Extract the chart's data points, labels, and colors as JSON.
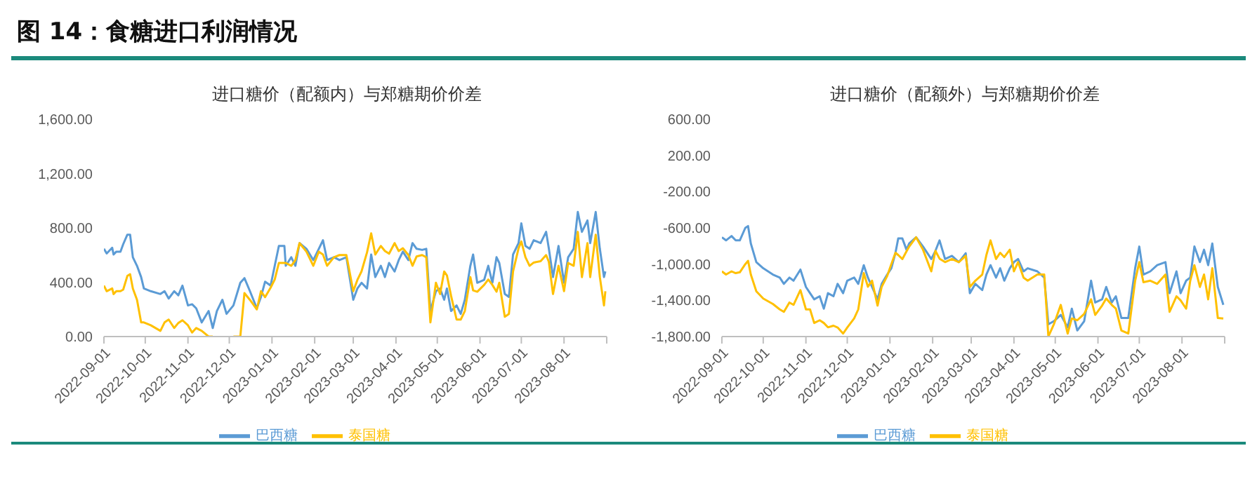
{
  "chart_data": [
    {
      "type": "line",
      "title": "图 14：食糖进口利润情况",
      "subtitle": "进口糖价（配额内）与郑糖期价价差",
      "legend": "bottom",
      "grid": false,
      "marker": "none",
      "line_style": "solid",
      "x": [
        "2022-09-01",
        "2022-09-03",
        "2022-09-07",
        "2022-09-08",
        "2022-09-10",
        "2022-09-13",
        "2022-09-15",
        "2022-09-18",
        "2022-09-20",
        "2022-09-22",
        "2022-09-25",
        "2022-09-28",
        "2022-09-30",
        "2022-10-05",
        "2022-10-12",
        "2022-10-15",
        "2022-10-18",
        "2022-10-22",
        "2022-10-25",
        "2022-10-28",
        "2022-11-01",
        "2022-11-04",
        "2022-11-07",
        "2022-11-11",
        "2022-11-16",
        "2022-11-19",
        "2022-11-22",
        "2022-11-26",
        "2022-11-29",
        "2022-12-04",
        "2022-12-09",
        "2022-12-12",
        "2022-12-16",
        "2022-12-21",
        "2022-12-24",
        "2022-12-27",
        "2022-12-31",
        "2023-01-03",
        "2023-01-06",
        "2023-01-10",
        "2023-01-11",
        "2023-01-15",
        "2023-01-18",
        "2023-01-21",
        "2023-01-26",
        "2023-01-31",
        "2023-02-04",
        "2023-02-07",
        "2023-02-10",
        "2023-02-15",
        "2023-02-19",
        "2023-02-24",
        "2023-03-01",
        "2023-03-04",
        "2023-03-07",
        "2023-03-11",
        "2023-03-14",
        "2023-03-17",
        "2023-03-21",
        "2023-03-24",
        "2023-03-27",
        "2023-03-31",
        "2023-04-03",
        "2023-04-06",
        "2023-04-10",
        "2023-04-13",
        "2023-04-16",
        "2023-04-20",
        "2023-04-23",
        "2023-04-26",
        "2023-04-30",
        "2023-05-03",
        "2023-05-06",
        "2023-05-08",
        "2023-05-11",
        "2023-05-15",
        "2023-05-18",
        "2023-05-21",
        "2023-05-25",
        "2023-05-27",
        "2023-05-30",
        "2023-06-04",
        "2023-06-07",
        "2023-06-10",
        "2023-06-13",
        "2023-06-15",
        "2023-06-19",
        "2023-06-22",
        "2023-06-25",
        "2023-06-29",
        "2023-07-01",
        "2023-07-04",
        "2023-07-07",
        "2023-07-10",
        "2023-07-15",
        "2023-07-19",
        "2023-07-21",
        "2023-07-24",
        "2023-07-28",
        "2023-08-01",
        "2023-08-04",
        "2023-08-08",
        "2023-08-11",
        "2023-08-14",
        "2023-08-18",
        "2023-08-20",
        "2023-08-24",
        "2023-08-27",
        "2023-08-30",
        "2023-08-31"
      ],
      "xlim": [
        "2022-09-01",
        "2023-09-01"
      ],
      "xticks": [
        "2022-09-01",
        "2022-10-01",
        "2022-11-01",
        "2022-12-01",
        "2023-01-01",
        "2023-02-01",
        "2023-03-01",
        "2023-04-01",
        "2023-05-01",
        "2023-06-01",
        "2023-07-01",
        "2023-08-01",
        {
          "value": "2023-09-01",
          "label": null
        }
      ],
      "ylim": [
        0,
        1600
      ],
      "yticks": [
        {
          "value": 0,
          "label": "0.00"
        },
        {
          "value": 400,
          "label": "400.00"
        },
        {
          "value": 800,
          "label": "800.00"
        },
        {
          "value": 1200,
          "label": "1,200.00"
        },
        {
          "value": 1600,
          "label": "1,600.00"
        }
      ],
      "series": [
        {
          "name": "巴西糖",
          "color": "#5b9bd5",
          "values": [
            646,
            612,
            654,
            604,
            625,
            625,
            680,
            750,
            750,
            584,
            521,
            438,
            354,
            334,
            313,
            334,
            280,
            334,
            304,
            375,
            229,
            238,
            208,
            104,
            188,
            63,
            188,
            271,
            167,
            229,
            396,
            430,
            334,
            208,
            292,
            404,
            375,
            521,
            667,
            667,
            521,
            584,
            521,
            688,
            646,
            563,
            646,
            709,
            563,
            584,
            563,
            584,
            271,
            354,
            396,
            354,
            604,
            438,
            521,
            438,
            542,
            479,
            563,
            625,
            563,
            688,
            646,
            638,
            646,
            188,
            334,
            354,
            271,
            354,
            188,
            229,
            167,
            271,
            521,
            604,
            396,
            417,
            521,
            396,
            584,
            542,
            313,
            292,
            604,
            688,
            834,
            667,
            646,
            709,
            688,
            771,
            646,
            438,
            667,
            396,
            584,
            646,
            917,
            771,
            855,
            688,
            917,
            646,
            438,
            479
          ]
        },
        {
          "name": "泰国糖",
          "color": "#ffc000",
          "values": [
            375,
            334,
            354,
            313,
            334,
            334,
            346,
            446,
            459,
            354,
            271,
            104,
            104,
            83,
            42,
            104,
            125,
            63,
            100,
            120,
            83,
            30,
            63,
            42,
            0,
            0,
            null,
            null,
            null,
            0,
            0,
            320,
            270,
            200,
            334,
            290,
            360,
            420,
            542,
            542,
            542,
            521,
            563,
            688,
            625,
            521,
            625,
            604,
            521,
            584,
            600,
            600,
            334,
            417,
            480,
            620,
            760,
            604,
            667,
            630,
            610,
            688,
            630,
            650,
            600,
            521,
            590,
            600,
            584,
            104,
            396,
            313,
            479,
            450,
            300,
            125,
            125,
            188,
            438,
            340,
            330,
            380,
            420,
            380,
            330,
            396,
            146,
            167,
            479,
            650,
            700,
            584,
            521,
            545,
            555,
            600,
            550,
            313,
            521,
            334,
            542,
            521,
            771,
            438,
            688,
            438,
            750,
            438,
            229,
            334
          ]
        }
      ]
    },
    {
      "type": "line",
      "title": "进口糖价（配额外）与郑糖期价价差",
      "legend": "bottom",
      "grid": false,
      "marker": "none",
      "line_style": "solid",
      "x": [
        "2022-09-01",
        "2022-09-04",
        "2022-09-08",
        "2022-09-11",
        "2022-09-14",
        "2022-09-18",
        "2022-09-20",
        "2022-09-22",
        "2022-09-26",
        "2022-10-01",
        "2022-10-08",
        "2022-10-13",
        "2022-10-16",
        "2022-10-20",
        "2022-10-23",
        "2022-10-28",
        "2022-11-01",
        "2022-11-04",
        "2022-11-07",
        "2022-11-11",
        "2022-11-14",
        "2022-11-17",
        "2022-11-21",
        "2022-11-24",
        "2022-11-28",
        "2022-12-01",
        "2022-12-06",
        "2022-12-09",
        "2022-12-13",
        "2022-12-16",
        "2022-12-19",
        "2022-12-23",
        "2022-12-26",
        "2022-12-30",
        "2023-01-02",
        "2023-01-05",
        "2023-01-07",
        "2023-01-10",
        "2023-01-13",
        "2023-01-15",
        "2023-01-20",
        "2023-01-25",
        "2023-01-31",
        "2023-02-03",
        "2023-02-06",
        "2023-02-10",
        "2023-02-15",
        "2023-02-20",
        "2023-02-25",
        "2023-02-28",
        "2023-03-04",
        "2023-03-09",
        "2023-03-12",
        "2023-03-15",
        "2023-03-19",
        "2023-03-22",
        "2023-03-25",
        "2023-03-29",
        "2023-04-01",
        "2023-04-04",
        "2023-04-08",
        "2023-04-11",
        "2023-04-18",
        "2023-04-23",
        "2023-04-26",
        "2023-04-30",
        "2023-05-05",
        "2023-05-10",
        "2023-05-13",
        "2023-05-17",
        "2023-05-22",
        "2023-05-27",
        "2023-05-30",
        "2023-06-04",
        "2023-06-07",
        "2023-06-11",
        "2023-06-14",
        "2023-06-18",
        "2023-06-23",
        "2023-06-28",
        "2023-07-01",
        "2023-07-04",
        "2023-07-09",
        "2023-07-14",
        "2023-07-20",
        "2023-07-23",
        "2023-07-28",
        "2023-07-31",
        "2023-08-04",
        "2023-08-07",
        "2023-08-10",
        "2023-08-14",
        "2023-08-17",
        "2023-08-20",
        "2023-08-23",
        "2023-08-27",
        "2023-08-31"
      ],
      "xlim": [
        "2022-09-01",
        "2023-09-01"
      ],
      "xticks": [
        "2022-09-01",
        "2022-10-01",
        "2022-11-01",
        "2022-12-01",
        "2023-01-01",
        "2023-02-01",
        "2023-03-01",
        "2023-04-01",
        "2023-05-01",
        "2023-06-01",
        "2023-07-01",
        "2023-08-01",
        {
          "value": "2023-09-01",
          "label": null
        }
      ],
      "ylim": [
        -1800,
        600
      ],
      "yticks": [
        {
          "value": -1800,
          "label": "-1,800.00"
        },
        {
          "value": -1400,
          "label": "-1,400.00"
        },
        {
          "value": -1000,
          "label": "-1,000.00"
        },
        {
          "value": -600,
          "label": "-600.00"
        },
        {
          "value": -200,
          "label": "-200.00"
        },
        {
          "value": 200,
          "label": "200.00"
        },
        {
          "value": 600,
          "label": "600.00"
        }
      ],
      "series": [
        {
          "name": "巴西糖",
          "color": "#5b9bd5",
          "values": [
            -704,
            -738,
            -690,
            -738,
            -738,
            -600,
            -580,
            -772,
            -978,
            -1046,
            -1115,
            -1149,
            -1218,
            -1149,
            -1183,
            -1060,
            -1252,
            -1321,
            -1389,
            -1355,
            -1492,
            -1321,
            -1355,
            -1218,
            -1321,
            -1183,
            -1149,
            -1218,
            -1012,
            -1149,
            -1252,
            -1389,
            -1218,
            -1115,
            -1046,
            -875,
            -717,
            -717,
            -841,
            -772,
            -704,
            -806,
            -944,
            -854,
            -738,
            -944,
            -909,
            -978,
            -880,
            -1321,
            -1218,
            -1287,
            -1115,
            -1012,
            -1149,
            -1046,
            -1183,
            -1046,
            -978,
            -944,
            -1080,
            -1046,
            -1080,
            -1149,
            -1664,
            -1630,
            -1561,
            -1698,
            -1492,
            -1733,
            -1630,
            -1183,
            -1424,
            -1389,
            -1252,
            -1424,
            -1355,
            -1595,
            -1595,
            -1046,
            -806,
            -1115,
            -1080,
            -1012,
            -978,
            -1321,
            -1080,
            -1321,
            -1183,
            -1149,
            -806,
            -978,
            -841,
            -1012,
            -772,
            -1252,
            -1450
          ]
        },
        {
          "name": "泰国糖",
          "color": "#ffc000",
          "values": [
            -1080,
            -1115,
            -1080,
            -1100,
            -1090,
            -1000,
            -964,
            -1115,
            -1300,
            -1380,
            -1440,
            -1500,
            -1527,
            -1424,
            -1450,
            -1287,
            -1500,
            -1500,
            -1650,
            -1620,
            -1650,
            -1698,
            -1680,
            -1700,
            -1767,
            -1700,
            -1600,
            -1500,
            -1100,
            -1250,
            -1183,
            -1458,
            -1250,
            -1130,
            -1000,
            -875,
            -900,
            -944,
            -860,
            -806,
            -704,
            -841,
            -1080,
            -854,
            -940,
            -978,
            -944,
            -978,
            -909,
            -1252,
            -1183,
            -1115,
            -900,
            -738,
            -944,
            -875,
            -923,
            -841,
            -1080,
            -978,
            -1150,
            -1183,
            -1115,
            -1115,
            -1800,
            -1664,
            -1450,
            -1767,
            -1600,
            -1620,
            -1550,
            -1389,
            -1561,
            -1458,
            -1380,
            -1450,
            -1492,
            -1733,
            -1767,
            -1183,
            -978,
            -1200,
            -1183,
            -1218,
            -1115,
            -1527,
            -1355,
            -1400,
            -1492,
            -1183,
            -1012,
            -1252,
            -1115,
            -1389,
            -1046,
            -1595,
            -1600
          ]
        }
      ]
    }
  ]
}
